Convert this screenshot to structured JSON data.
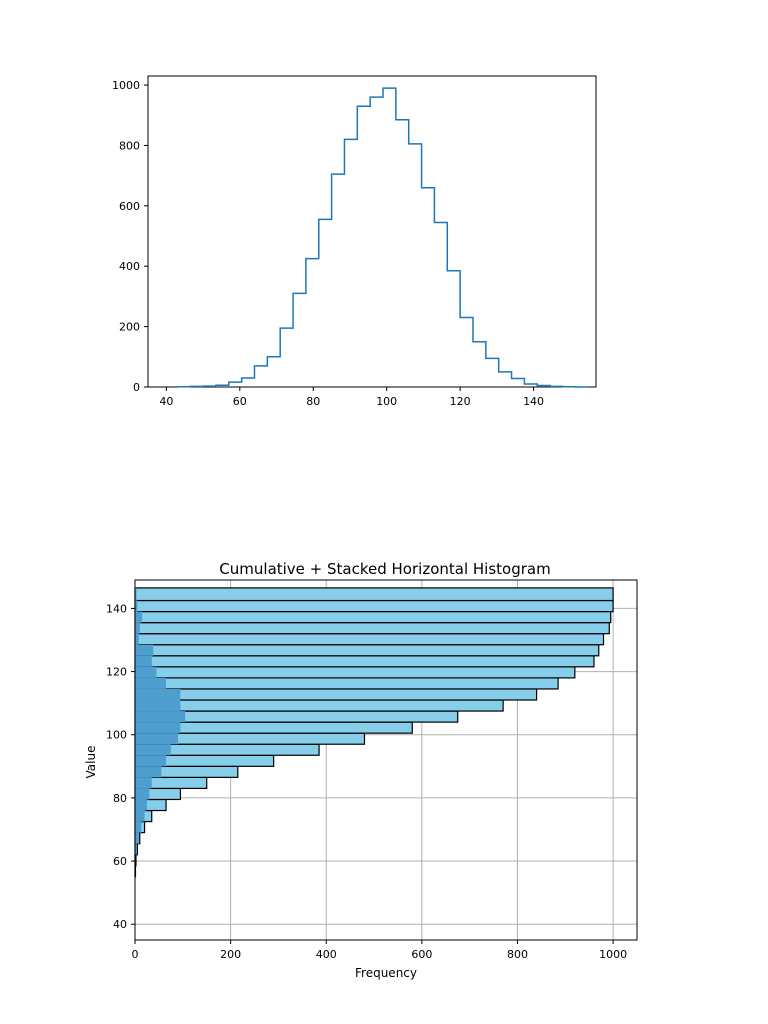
{
  "chart_data": [
    {
      "type": "histogram-step",
      "orientation": "vertical",
      "title": "",
      "xlabel": "",
      "ylabel": "",
      "xlim": [
        35,
        157
      ],
      "ylim": [
        0,
        1030
      ],
      "xticks": [
        40,
        60,
        80,
        100,
        120,
        140
      ],
      "yticks": [
        0,
        200,
        400,
        600,
        800,
        1000
      ],
      "grid": false,
      "series": [
        {
          "bin_edges": [
            43,
            46.5,
            50,
            53.5,
            57,
            60.5,
            64,
            67.5,
            71,
            74.5,
            78,
            81.5,
            85,
            88.5,
            92,
            95.5,
            99,
            102.5,
            106,
            109.5,
            113,
            116.5,
            120,
            123.5,
            127,
            130.5,
            134,
            137.5,
            141,
            144.5,
            148,
            151.5,
            155
          ],
          "counts": [
            1,
            2,
            3,
            6,
            16,
            30,
            70,
            100,
            195,
            310,
            425,
            555,
            705,
            820,
            930,
            960,
            990,
            885,
            805,
            660,
            545,
            385,
            230,
            150,
            95,
            50,
            28,
            10,
            5,
            2,
            1,
            0
          ]
        }
      ]
    },
    {
      "type": "bar",
      "orientation": "horizontal",
      "stacked": true,
      "cumulative": true,
      "title": "Cumulative + Stacked Horizontal Histogram",
      "xlabel": "Frequency",
      "ylabel": "Value",
      "xlim": [
        0,
        1050
      ],
      "ylim": [
        35,
        149
      ],
      "xticks": [
        0,
        200,
        400,
        600,
        800,
        1000
      ],
      "yticks": [
        40,
        60,
        80,
        100,
        120,
        140
      ],
      "grid": true,
      "colors": {
        "base": "#4e9fd0",
        "cumulative": "#87ceeb",
        "edge": "#000000"
      },
      "bin_edges": [
        48,
        51.5,
        55,
        58.5,
        62,
        65.5,
        69,
        72.5,
        76,
        79.5,
        83,
        86.5,
        90,
        93.5,
        97,
        100.5,
        104,
        107.5,
        111,
        114.5,
        118,
        121.5,
        125,
        128.5,
        132,
        135.5,
        139,
        142.5,
        146.5
      ],
      "base_counts": [
        0,
        0,
        0,
        1,
        3,
        8,
        13,
        20,
        25,
        30,
        35,
        55,
        65,
        75,
        90,
        95,
        105,
        95,
        95,
        65,
        45,
        35,
        38,
        8,
        10,
        15,
        5,
        3
      ],
      "cumulative_counts": [
        0,
        0,
        1,
        2,
        5,
        10,
        20,
        35,
        65,
        95,
        150,
        215,
        290,
        385,
        480,
        580,
        675,
        770,
        840,
        885,
        920,
        960,
        970,
        980,
        992,
        995,
        1000,
        1000
      ]
    }
  ]
}
